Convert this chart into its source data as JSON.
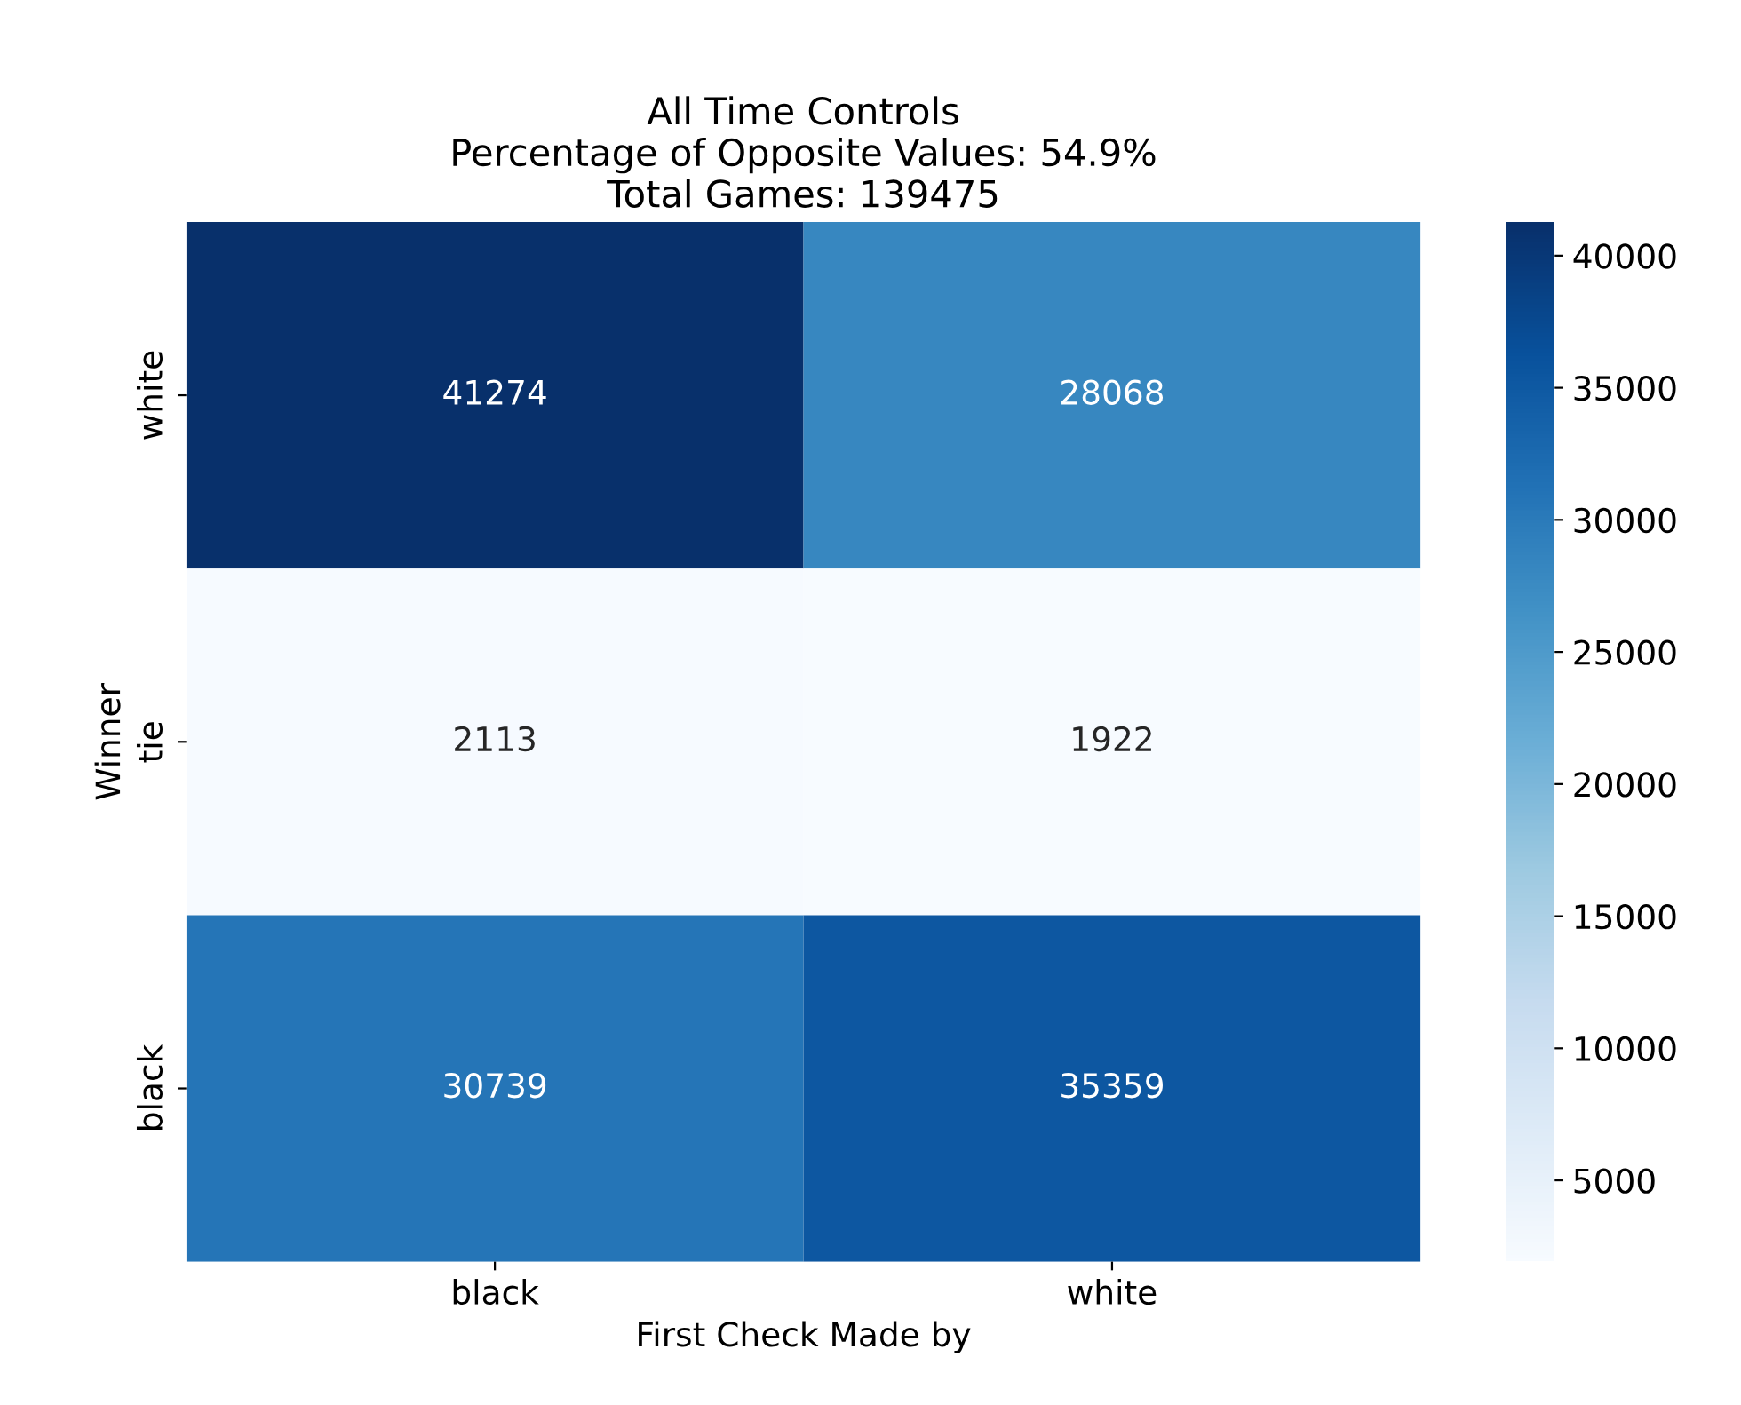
{
  "chart_data": {
    "type": "heatmap",
    "title": "All Time Controls\nPercentage of Opposite Values: 54.9%\nTotal Games: 139475",
    "xlabel": "First Check Made by",
    "ylabel": "Winner",
    "categories": [
      "black",
      "white"
    ],
    "y_categories": [
      "white",
      "tie",
      "black"
    ],
    "cells": [
      [
        41274,
        28068
      ],
      [
        2113,
        1922
      ],
      [
        30739,
        35359
      ]
    ],
    "data_labels": true,
    "clim": [
      1922,
      41274
    ],
    "cticks": [
      5000,
      10000,
      15000,
      20000,
      25000,
      30000,
      35000,
      40000
    ]
  }
}
